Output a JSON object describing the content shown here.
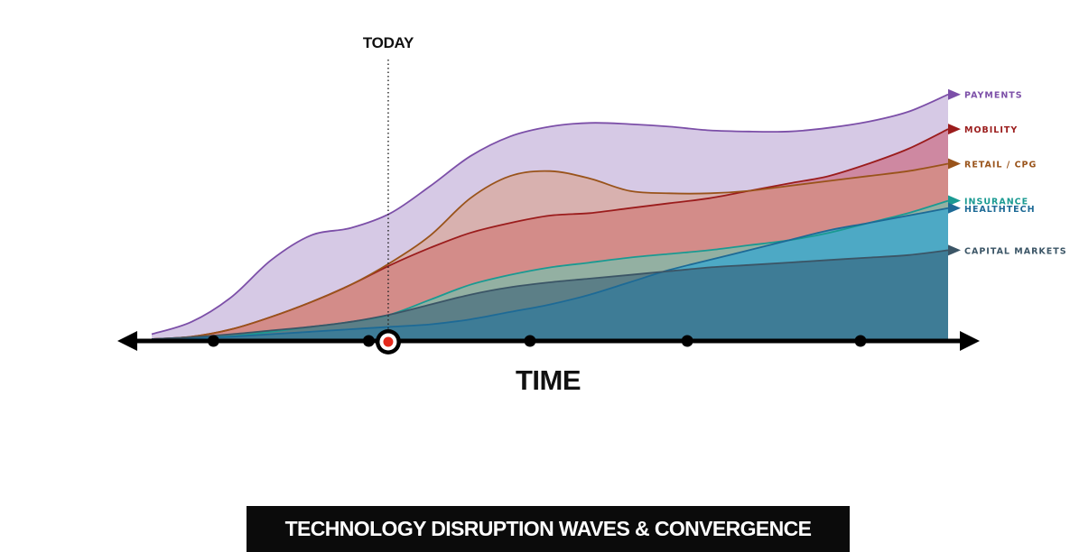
{
  "chart_data": {
    "type": "area",
    "title": "TECHNOLOGY DISRUPTION WAVES & CONVERGENCE",
    "xlabel": "TIME",
    "annotation": "TODAY",
    "ylim": [
      0,
      1
    ],
    "x": [
      0,
      1,
      2,
      3,
      4,
      5,
      6,
      7,
      8,
      9,
      10,
      11,
      12,
      13,
      14,
      15,
      16,
      17,
      18,
      19,
      20
    ],
    "today_x": 5.94,
    "ticks_x": [
      1.55,
      5.45,
      9.5,
      13.45,
      17.8
    ],
    "series": [
      {
        "name": "PAYMENTS",
        "color": "#7c4fa8",
        "fill": "rgba(158,126,194,0.42)",
        "values": [
          0.02,
          0.07,
          0.17,
          0.32,
          0.42,
          0.45,
          0.51,
          0.62,
          0.74,
          0.82,
          0.86,
          0.875,
          0.87,
          0.86,
          0.845,
          0.84,
          0.84,
          0.855,
          0.88,
          0.92,
          0.99
        ]
      },
      {
        "name": "MOBILITY",
        "color": "#9b1c1c",
        "fill": "rgba(196,48,66,0.42)",
        "values": [
          0.0,
          0.01,
          0.04,
          0.09,
          0.15,
          0.22,
          0.3,
          0.37,
          0.43,
          0.47,
          0.5,
          0.51,
          0.53,
          0.55,
          0.57,
          0.6,
          0.63,
          0.66,
          0.71,
          0.77,
          0.85
        ]
      },
      {
        "name": "RETAIL / CPG",
        "color": "#99531a",
        "fill": "rgba(219,146,108,0.44)",
        "values": [
          0.0,
          0.01,
          0.04,
          0.09,
          0.15,
          0.22,
          0.31,
          0.42,
          0.57,
          0.66,
          0.68,
          0.65,
          0.6,
          0.59,
          0.59,
          0.6,
          0.62,
          0.64,
          0.66,
          0.68,
          0.71
        ]
      },
      {
        "name": "INSURANCE",
        "color": "#1a9a92",
        "fill": "rgba(108,198,178,0.62)",
        "values": [
          0.0,
          0.004,
          0.012,
          0.03,
          0.05,
          0.07,
          0.1,
          0.16,
          0.22,
          0.26,
          0.29,
          0.31,
          0.33,
          0.345,
          0.36,
          0.38,
          0.4,
          0.43,
          0.47,
          0.51,
          0.56
        ]
      },
      {
        "name": "HEALTHTECH",
        "color": "#1d6a96",
        "fill": "rgba(60,168,206,0.80)",
        "values": [
          0.0,
          0.003,
          0.01,
          0.02,
          0.03,
          0.04,
          0.05,
          0.06,
          0.08,
          0.11,
          0.14,
          0.18,
          0.23,
          0.28,
          0.32,
          0.36,
          0.4,
          0.44,
          0.47,
          0.5,
          0.53
        ]
      },
      {
        "name": "CAPITAL MARKETS",
        "color": "#3b5566",
        "fill": "rgba(52,92,116,0.58)",
        "values": [
          0.0,
          0.008,
          0.02,
          0.035,
          0.05,
          0.07,
          0.1,
          0.14,
          0.18,
          0.21,
          0.23,
          0.245,
          0.26,
          0.275,
          0.29,
          0.3,
          0.31,
          0.32,
          0.33,
          0.34,
          0.36
        ]
      }
    ]
  }
}
